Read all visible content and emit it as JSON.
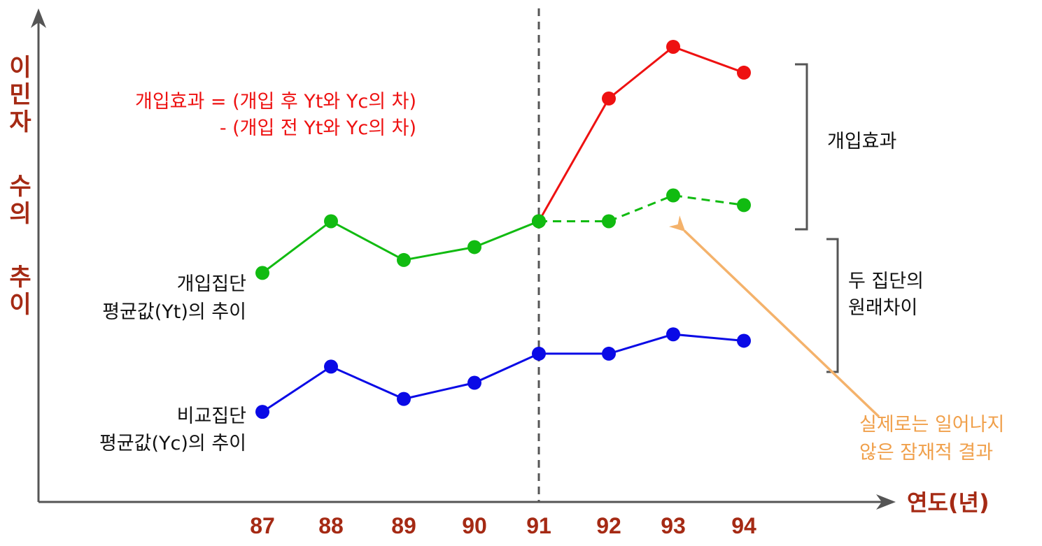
{
  "chart_data": {
    "type": "line",
    "categories": [
      "87",
      "88",
      "89",
      "90",
      "91",
      "92",
      "93",
      "94"
    ],
    "xlabel": "연도(년)",
    "ylabel_chars": [
      "이",
      "민",
      "자",
      "수",
      "의",
      "추",
      "이"
    ],
    "intervention_at": "91",
    "series": [
      {
        "name": "개입집단 평균값(Yt)의 추이",
        "color": "#ee1111",
        "values": [
          null,
          null,
          null,
          null,
          3.3,
          7.1,
          8.7,
          7.9
        ]
      },
      {
        "name": "개입집단 평균값(Yt)의 추이",
        "color": "#11bb11",
        "values": [
          1.7,
          3.3,
          2.1,
          2.5,
          3.3,
          null,
          null,
          null
        ]
      },
      {
        "name": "실제로는 일어나지 않은 잠재적 결과",
        "color": "#11bb11",
        "dashed": true,
        "values": [
          null,
          null,
          null,
          null,
          3.3,
          3.3,
          4.1,
          3.8
        ]
      },
      {
        "name": "비교집단 평균값(Yc)의 추이",
        "color": "#0a0ae6",
        "values": [
          -2.6,
          -1.2,
          -2.2,
          -1.7,
          -0.8,
          -0.8,
          -0.2,
          -0.4
        ]
      }
    ],
    "ylim": [
      -5,
      9.5
    ]
  },
  "labels": {
    "formula_line1": "개입효과 = (개입 후 Yt와 Yc의 차)",
    "formula_line2": "- (개입 전 Yt와 Yc의 차)",
    "treated_line1": "개입집단",
    "treated_line2": "평균값(Yt)의 추이",
    "control_line1": "비교집단",
    "control_line2": "평균값(Yc)의 추이",
    "effect_brace": "개입효과",
    "diff_line1": "두 집단의",
    "diff_line2": "원래차이",
    "counterfactual_line1": "실제로는 일어나지",
    "counterfactual_line2": "않은 잠재적 결과"
  },
  "colors": {
    "treated_after": "#ee1111",
    "treated_before": "#11bb11",
    "control": "#0a0ae6",
    "axis_label": "#a52a14",
    "formula": "#ee1111",
    "counterfactual_arrow": "#f4b26b",
    "axis": "#555555"
  }
}
